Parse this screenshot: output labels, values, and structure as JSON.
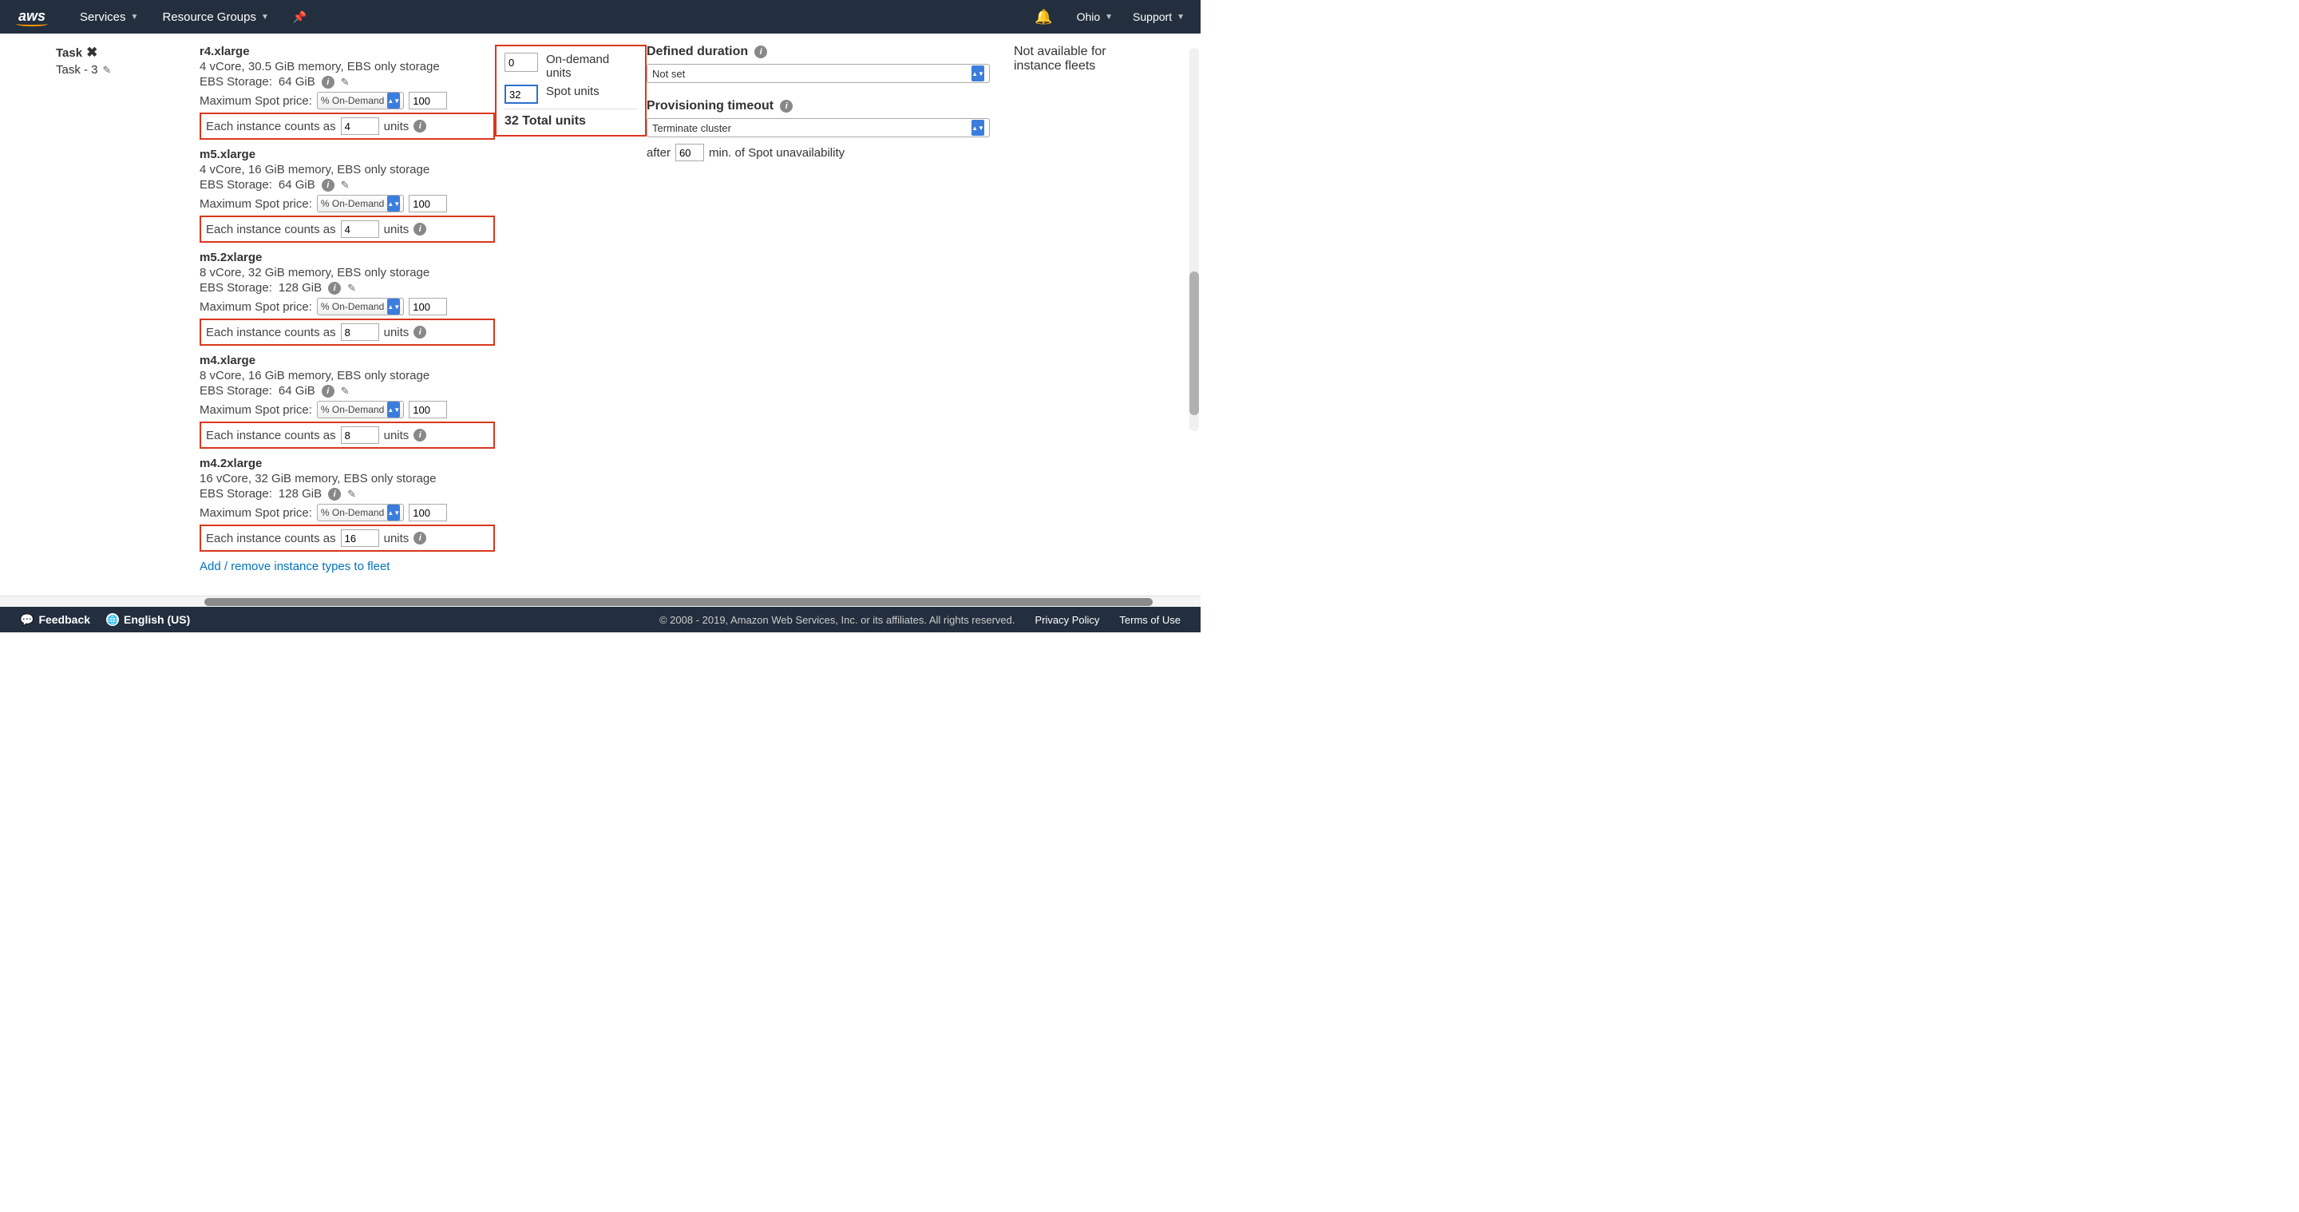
{
  "topbar": {
    "services": "Services",
    "resource_groups": "Resource Groups",
    "region": "Ohio",
    "support": "Support"
  },
  "task": {
    "title": "Task",
    "subtitle": "Task - 3"
  },
  "instances": [
    {
      "name": "r4.xlarge",
      "spec": "4 vCore, 30.5 GiB memory, EBS only storage",
      "ebs_label": "EBS Storage:",
      "ebs_value": "64 GiB",
      "spot_label": "Maximum Spot price:",
      "spot_mode": "% On-Demand",
      "spot_value": "100",
      "counts_prefix": "Each instance counts as",
      "counts_value": "4",
      "counts_suffix": "units"
    },
    {
      "name": "m5.xlarge",
      "spec": "4 vCore, 16 GiB memory, EBS only storage",
      "ebs_label": "EBS Storage:",
      "ebs_value": "64 GiB",
      "spot_label": "Maximum Spot price:",
      "spot_mode": "% On-Demand",
      "spot_value": "100",
      "counts_prefix": "Each instance counts as",
      "counts_value": "4",
      "counts_suffix": "units"
    },
    {
      "name": "m5.2xlarge",
      "spec": "8 vCore, 32 GiB memory, EBS only storage",
      "ebs_label": "EBS Storage:",
      "ebs_value": "128 GiB",
      "spot_label": "Maximum Spot price:",
      "spot_mode": "% On-Demand",
      "spot_value": "100",
      "counts_prefix": "Each instance counts as",
      "counts_value": "8",
      "counts_suffix": "units"
    },
    {
      "name": "m4.xlarge",
      "spec": "8 vCore, 16 GiB memory, EBS only storage",
      "ebs_label": "EBS Storage:",
      "ebs_value": "64 GiB",
      "spot_label": "Maximum Spot price:",
      "spot_mode": "% On-Demand",
      "spot_value": "100",
      "counts_prefix": "Each instance counts as",
      "counts_value": "8",
      "counts_suffix": "units"
    },
    {
      "name": "m4.2xlarge",
      "spec": "16 vCore, 32 GiB memory, EBS only storage",
      "ebs_label": "EBS Storage:",
      "ebs_value": "128 GiB",
      "spot_label": "Maximum Spot price:",
      "spot_mode": "% On-Demand",
      "spot_value": "100",
      "counts_prefix": "Each instance counts as",
      "counts_value": "16",
      "counts_suffix": "units"
    }
  ],
  "add_remove_link": "Add / remove instance types to fleet",
  "units": {
    "on_demand_value": "0",
    "on_demand_label": "On-demand units",
    "spot_value": "32",
    "spot_label": "Spot units",
    "total": "32 Total units"
  },
  "duration": {
    "defined_label": "Defined duration",
    "defined_value": "Not set",
    "timeout_label": "Provisioning timeout",
    "timeout_value": "Terminate cluster",
    "after_prefix": "after",
    "after_value": "60",
    "after_suffix": "min. of Spot unavailability"
  },
  "availability": "Not available for instance fleets",
  "footer": {
    "feedback": "Feedback",
    "language": "English (US)",
    "copyright": "© 2008 - 2019, Amazon Web Services, Inc. or its affiliates. All rights reserved.",
    "privacy": "Privacy Policy",
    "terms": "Terms of Use"
  },
  "hscroll": {
    "left_pct": 17,
    "width_pct": 79
  }
}
